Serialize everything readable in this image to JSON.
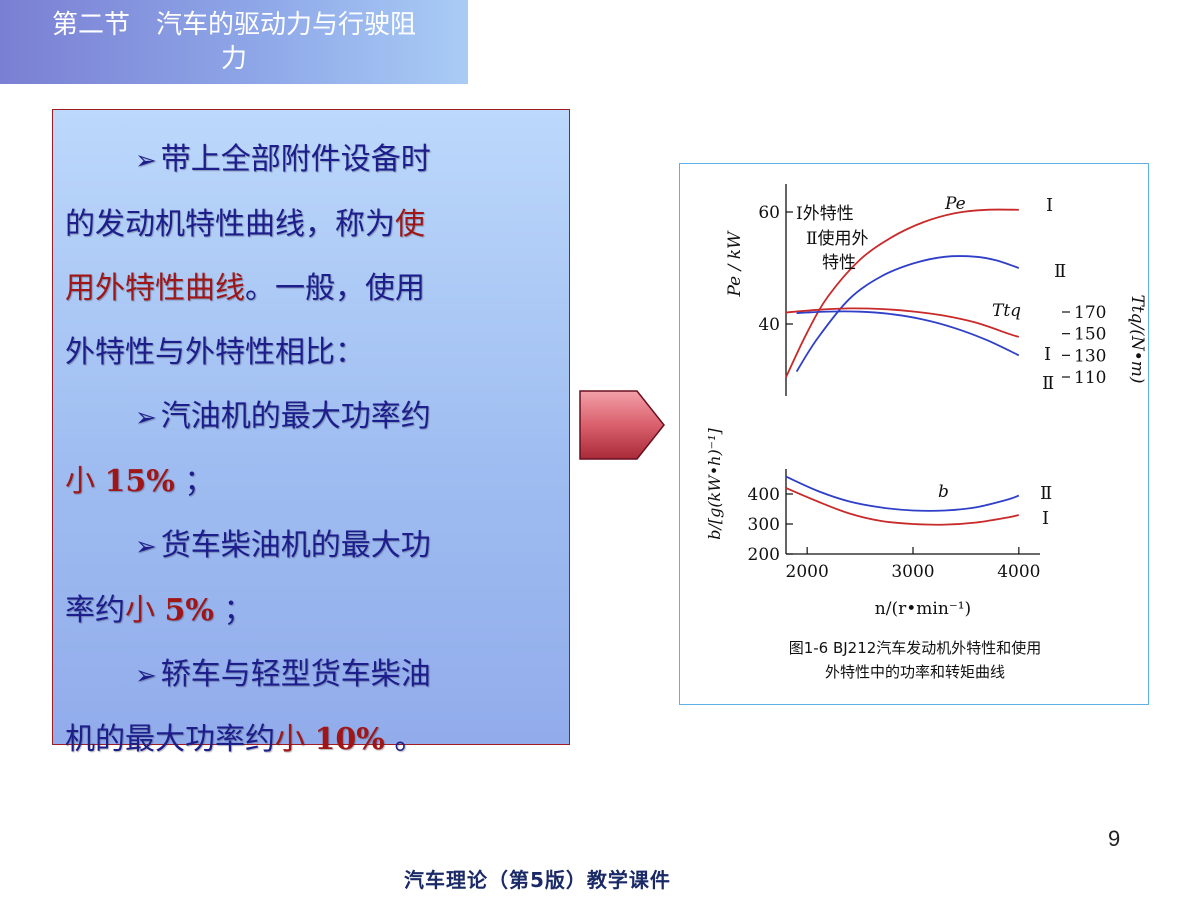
{
  "slide": {
    "title_line1": "第二节　汽车的驱动力与行驶阻",
    "title_line2": "力",
    "page_number": "9",
    "footer": "汽车理论（第5版）教学课件"
  },
  "body": {
    "bullet_glyph": "➢",
    "p1_a": "带上全部附件设备时",
    "p1_b": "的发动机特性曲线，称为",
    "p1_c": "使",
    "p1_d": "用外特性曲线",
    "p1_e": "。一般，使用",
    "p1_f": "外特性与外特性相比：",
    "p2_a": "汽油机的最大功率约",
    "p2_b": "小",
    "p2_c": "15%",
    "p2_d": "；",
    "p3_a": "货车柴油机的最大功",
    "p3_b": "率约",
    "p3_c": "小",
    "p3_d": "5%",
    "p3_e": "；",
    "p4_a": "轿车与轻型货车柴油",
    "p4_b": "机的最大功率约",
    "p4_c": "小",
    "p4_d": "10%",
    "p4_e": "。",
    "highlight_color": "#a01616",
    "text_color": "#1d1d8c"
  },
  "figure": {
    "caption_line1": "图1-6  BJ212汽车发动机外特性和使用",
    "caption_line2": "外特性中的功率和转矩曲线"
  },
  "chart_data": {
    "type": "line",
    "x_label": "n/(r•min⁻¹)",
    "x_ticks": [
      2000,
      3000,
      4000
    ],
    "xlim": [
      1800,
      4200
    ],
    "legend": {
      "line1": "Ⅰ外特性",
      "line2": "Ⅱ使用外",
      "line3": "特性"
    },
    "power_axis": {
      "label": "Pe / kW",
      "ticks": [
        {
          "value": 60,
          "label": "60"
        },
        {
          "value": 40,
          "label": "40"
        }
      ]
    },
    "fuel_axis": {
      "label": "b/[g(kW•h)⁻¹]",
      "ticks": [
        {
          "value": 400,
          "label": "400"
        },
        {
          "value": 300,
          "label": "300"
        },
        {
          "value": 200,
          "label": "200"
        }
      ]
    },
    "torque_axis": {
      "label": "Ttq/(N•m)",
      "ticks": [
        {
          "value": 170,
          "label": "170"
        },
        {
          "value": 150,
          "label": "150"
        },
        {
          "value": 130,
          "label": "130"
        },
        {
          "value": 110,
          "label": "110"
        }
      ]
    },
    "curve_labels": {
      "power": "Pe",
      "torque": "Ttq",
      "fuel": "b",
      "curve_I": "Ⅰ",
      "curve_II": "Ⅱ"
    },
    "series": [
      {
        "group": "power",
        "curve": "I",
        "color": "#c82a2a",
        "x": [
          1800,
          2000,
          2200,
          2500,
          2800,
          3100,
          3400,
          3700,
          4000
        ],
        "y": [
          30.5,
          38.5,
          45,
          51.5,
          55.5,
          58.2,
          59.8,
          60.4,
          60.4
        ]
      },
      {
        "group": "power",
        "curve": "II",
        "color": "#2f3fc8",
        "x": [
          1900,
          2100,
          2400,
          2700,
          3000,
          3300,
          3600,
          3800,
          4000
        ],
        "y": [
          31.5,
          37.5,
          44.5,
          48.5,
          50.8,
          52,
          52,
          51.3,
          50
        ]
      },
      {
        "group": "torque",
        "curve": "I",
        "color": "#c82a2a",
        "x": [
          1800,
          2100,
          2400,
          2700,
          3000,
          3300,
          3600,
          3900,
          4000
        ],
        "y": [
          169.5,
          172,
          173.3,
          172.8,
          170.5,
          166.5,
          160,
          150,
          147
        ]
      },
      {
        "group": "torque",
        "curve": "II",
        "color": "#2f3fc8",
        "x": [
          1900,
          2200,
          2500,
          2800,
          3100,
          3400,
          3700,
          4000
        ],
        "y": [
          169,
          170.4,
          170.3,
          168,
          163,
          155,
          144,
          130
        ]
      },
      {
        "group": "fuel",
        "curve": "I",
        "color": "#c82a2a",
        "x": [
          1800,
          2100,
          2400,
          2700,
          3000,
          3300,
          3600,
          3900,
          4000
        ],
        "y": [
          420,
          375,
          335,
          310,
          300,
          298,
          305,
          322,
          330
        ]
      },
      {
        "group": "fuel",
        "curve": "II",
        "color": "#2f3fc8",
        "x": [
          1800,
          2100,
          2400,
          2700,
          3000,
          3300,
          3600,
          3900,
          4000
        ],
        "y": [
          458,
          410,
          375,
          355,
          345,
          345,
          356,
          382,
          395
        ]
      }
    ]
  }
}
